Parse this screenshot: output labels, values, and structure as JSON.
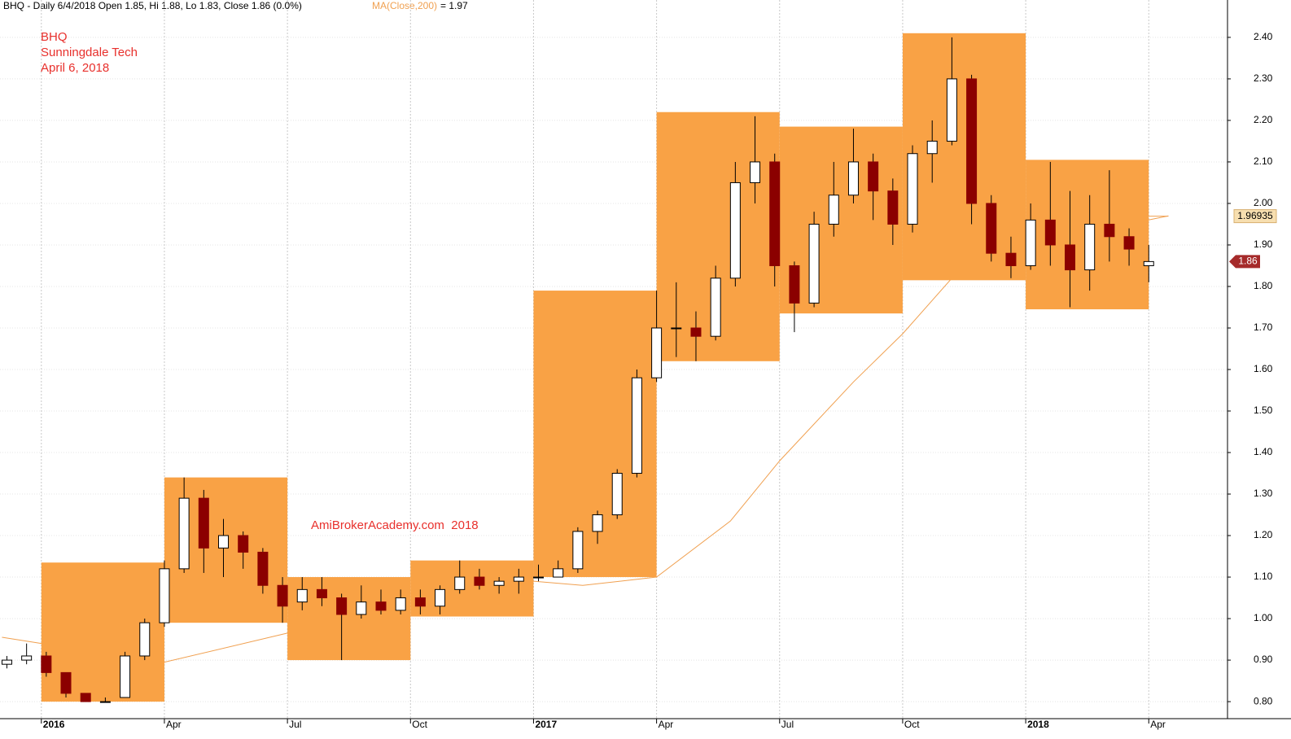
{
  "chart_data": {
    "type": "candlestick",
    "title": "BHQ - Daily 6/4/2018 Open 1.85, Hi 1.88, Lo 1.83, Close 1.86 (0.0%)",
    "ma_title": "MA(Close,200)",
    "ma_value_text": "= 1.97",
    "annotations": [
      "BHQ",
      "Sunningdale Tech",
      "April 6, 2018"
    ],
    "watermark": "AmiBrokerAcademy.com  2018",
    "x": [
      2015.93,
      2015.97,
      2016.01,
      2016.05,
      2016.09,
      2016.13,
      2016.17,
      2016.21,
      2016.25,
      2016.29,
      2016.33,
      2016.37,
      2016.41,
      2016.45,
      2016.49,
      2016.53,
      2016.57,
      2016.61,
      2016.65,
      2016.69,
      2016.73,
      2016.77,
      2016.81,
      2016.85,
      2016.89,
      2016.93,
      2016.97,
      2017.01,
      2017.05,
      2017.09,
      2017.13,
      2017.17,
      2017.21,
      2017.25,
      2017.29,
      2017.33,
      2017.37,
      2017.41,
      2017.45,
      2017.49,
      2017.53,
      2017.57,
      2017.61,
      2017.65,
      2017.69,
      2017.73,
      2017.77,
      2017.81,
      2017.85,
      2017.89,
      2017.93,
      2017.97,
      2018.01,
      2018.05,
      2018.09,
      2018.13,
      2018.17,
      2018.21,
      2018.25
    ],
    "open": [
      0.89,
      0.9,
      0.91,
      0.87,
      0.82,
      0.8,
      0.81,
      0.91,
      0.99,
      1.12,
      1.29,
      1.17,
      1.2,
      1.16,
      1.08,
      1.04,
      1.07,
      1.05,
      1.01,
      1.04,
      1.02,
      1.05,
      1.03,
      1.07,
      1.1,
      1.08,
      1.09,
      1.1,
      1.1,
      1.12,
      1.21,
      1.25,
      1.35,
      1.58,
      1.7,
      1.7,
      1.68,
      1.82,
      2.05,
      2.1,
      1.85,
      1.76,
      1.95,
      2.02,
      2.1,
      2.03,
      1.95,
      2.12,
      2.15,
      2.3,
      2.0,
      1.88,
      1.85,
      1.96,
      1.9,
      1.84,
      1.95,
      1.92,
      1.85
    ],
    "high": [
      0.91,
      0.94,
      0.92,
      0.87,
      0.82,
      0.81,
      0.92,
      1.0,
      1.14,
      1.34,
      1.31,
      1.24,
      1.21,
      1.17,
      1.1,
      1.1,
      1.1,
      1.06,
      1.08,
      1.07,
      1.07,
      1.07,
      1.08,
      1.14,
      1.12,
      1.1,
      1.12,
      1.13,
      1.14,
      1.22,
      1.26,
      1.36,
      1.6,
      1.79,
      1.81,
      1.74,
      1.85,
      2.1,
      2.21,
      2.12,
      1.86,
      1.98,
      2.1,
      2.18,
      2.12,
      2.06,
      2.14,
      2.2,
      2.4,
      2.31,
      2.02,
      1.92,
      2.0,
      2.1,
      2.03,
      2.02,
      2.08,
      1.94,
      1.9
    ],
    "low": [
      0.88,
      0.89,
      0.86,
      0.81,
      0.8,
      0.8,
      0.81,
      0.9,
      0.98,
      1.11,
      1.11,
      1.1,
      1.12,
      1.06,
      0.99,
      1.02,
      1.03,
      0.9,
      1.0,
      1.01,
      1.01,
      1.01,
      1.01,
      1.06,
      1.07,
      1.06,
      1.06,
      1.09,
      1.1,
      1.11,
      1.18,
      1.24,
      1.34,
      1.57,
      1.63,
      1.62,
      1.67,
      1.8,
      2.0,
      1.8,
      1.69,
      1.75,
      1.92,
      2.0,
      1.96,
      1.9,
      1.93,
      2.05,
      2.14,
      1.95,
      1.86,
      1.82,
      1.84,
      1.85,
      1.75,
      1.79,
      1.86,
      1.85,
      1.81
    ],
    "close": [
      0.9,
      0.91,
      0.87,
      0.82,
      0.8,
      0.8,
      0.91,
      0.99,
      1.12,
      1.29,
      1.17,
      1.2,
      1.16,
      1.08,
      1.03,
      1.07,
      1.05,
      1.01,
      1.04,
      1.02,
      1.05,
      1.03,
      1.07,
      1.1,
      1.08,
      1.09,
      1.1,
      1.1,
      1.12,
      1.21,
      1.25,
      1.35,
      1.58,
      1.7,
      1.7,
      1.68,
      1.82,
      2.05,
      2.1,
      1.85,
      1.76,
      1.95,
      2.02,
      2.1,
      2.03,
      1.95,
      2.12,
      2.15,
      2.3,
      2.0,
      1.88,
      1.85,
      1.96,
      1.9,
      1.84,
      1.95,
      1.92,
      1.89,
      1.86
    ],
    "up_color": "#ffffff",
    "down_color": "#8b0000",
    "range_boxes": [
      {
        "x": [
          2016.0,
          2016.25
        ],
        "low": 0.8,
        "high": 1.135
      },
      {
        "x": [
          2016.25,
          2016.5
        ],
        "low": 0.99,
        "high": 1.34
      },
      {
        "x": [
          2016.5,
          2016.75
        ],
        "low": 0.9,
        "high": 1.1
      },
      {
        "x": [
          2016.75,
          2017.0
        ],
        "low": 1.005,
        "high": 1.14
      },
      {
        "x": [
          2017.0,
          2017.25
        ],
        "low": 1.1,
        "high": 1.79
      },
      {
        "x": [
          2017.25,
          2017.5
        ],
        "low": 1.62,
        "high": 2.22
      },
      {
        "x": [
          2017.5,
          2017.75
        ],
        "low": 1.735,
        "high": 2.185
      },
      {
        "x": [
          2017.75,
          2018.0
        ],
        "low": 1.815,
        "high": 2.41
      },
      {
        "x": [
          2018.0,
          2018.25
        ],
        "low": 1.745,
        "high": 2.105
      }
    ],
    "box_color": "#f9a245",
    "ma": {
      "name": "MA(Close,200)",
      "color": "#f0a050",
      "x": [
        2015.92,
        2016.0,
        2016.25,
        2016.5,
        2016.75,
        2017.0,
        2017.1,
        2017.25,
        2017.4,
        2017.5,
        2017.65,
        2017.75,
        2017.85,
        2018.0,
        2018.29
      ],
      "values": [
        0.955,
        0.94,
        0.895,
        0.965,
        1.03,
        1.09,
        1.08,
        1.1,
        1.235,
        1.38,
        1.57,
        1.686,
        1.82,
        1.9,
        1.97
      ],
      "last_value": 1.96935
    },
    "xlim": [
      2015.916,
      2018.41
    ],
    "ylim": [
      0.759,
      2.49
    ],
    "yticks": [
      {
        "value": 0.8,
        "label": "0.80"
      },
      {
        "value": 0.9,
        "label": "0.90"
      },
      {
        "value": 1.0,
        "label": "1.00"
      },
      {
        "value": 1.1,
        "label": "1.10"
      },
      {
        "value": 1.2,
        "label": "1.20"
      },
      {
        "value": 1.3,
        "label": "1.30"
      },
      {
        "value": 1.4,
        "label": "1.40"
      },
      {
        "value": 1.5,
        "label": "1.50"
      },
      {
        "value": 1.6,
        "label": "1.60"
      },
      {
        "value": 1.7,
        "label": "1.70"
      },
      {
        "value": 1.8,
        "label": "1.80"
      },
      {
        "value": 1.9,
        "label": "1.90"
      },
      {
        "value": 2.0,
        "label": "2.00"
      },
      {
        "value": 2.1,
        "label": "2.10"
      },
      {
        "value": 2.2,
        "label": "2.20"
      },
      {
        "value": 2.3,
        "label": "2.30"
      },
      {
        "value": 2.4,
        "label": "2.40"
      }
    ],
    "xticks": [
      {
        "value": 2016,
        "label": "2016"
      },
      {
        "value": 2016.25,
        "label": "Apr"
      },
      {
        "value": 2016.5,
        "label": "Jul"
      },
      {
        "value": 2016.75,
        "label": "Oct"
      },
      {
        "value": 2017,
        "label": "2017"
      },
      {
        "value": 2017.25,
        "label": "Apr"
      },
      {
        "value": 2017.5,
        "label": "Jul"
      },
      {
        "value": 2017.75,
        "label": "Oct"
      },
      {
        "value": 2018,
        "label": "2018"
      },
      {
        "value": 2018.25,
        "label": "Apr"
      }
    ],
    "grid": true
  }
}
